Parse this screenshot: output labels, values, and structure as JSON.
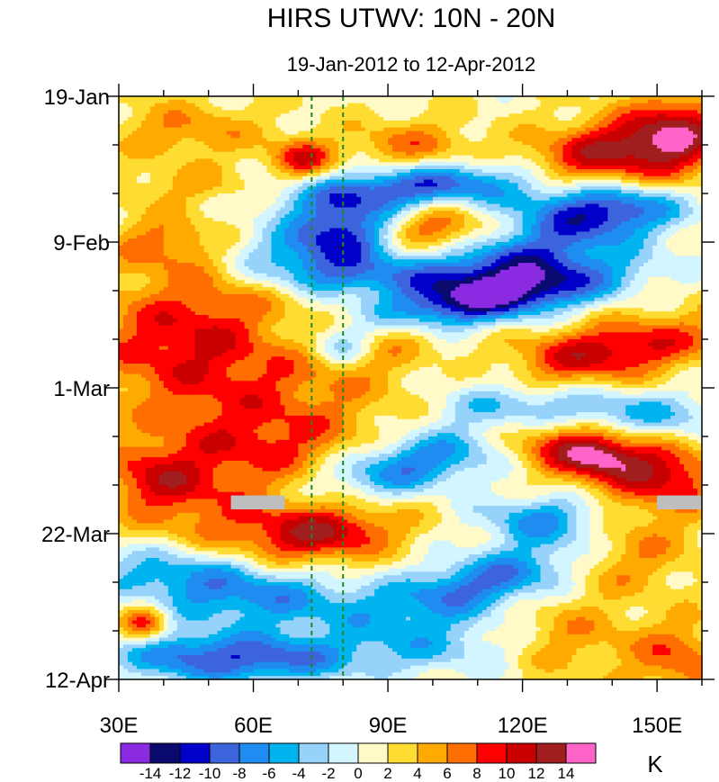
{
  "chart_data": {
    "type": "heatmap",
    "title": "HIRS UTWV: 10N - 20N",
    "subtitle": "19-Jan-2012 to 12-Apr-2012",
    "xlabel": "",
    "ylabel": "",
    "xlim": [
      30,
      160
    ],
    "x_ticks": [
      {
        "value": 30,
        "label": "30E"
      },
      {
        "value": 60,
        "label": "60E"
      },
      {
        "value": 90,
        "label": "90E"
      },
      {
        "value": 120,
        "label": "120E"
      },
      {
        "value": 150,
        "label": "150E"
      }
    ],
    "x_minor_step": 10,
    "ylim_days": [
      0,
      84
    ],
    "y_ticks": [
      {
        "day": 0,
        "label": "19-Jan"
      },
      {
        "day": 21,
        "label": "9-Feb"
      },
      {
        "day": 42,
        "label": "1-Mar"
      },
      {
        "day": 63,
        "label": "22-Mar"
      },
      {
        "day": 84,
        "label": "12-Apr"
      }
    ],
    "y_minor_step_days": 7,
    "reference_lines_lon": [
      73,
      80
    ],
    "reference_line_color": "#1f8a1f",
    "colorbar": {
      "unit": "K",
      "labels": [
        "-14",
        "-12",
        "-10",
        "-8",
        "-6",
        "-4",
        "-2",
        "0",
        "2",
        "4",
        "6",
        "8",
        "10",
        "12",
        "14"
      ],
      "colors": [
        "#8a2be2",
        "#0a0a6e",
        "#0000c8",
        "#3c64dc",
        "#1e8cf0",
        "#00b4f0",
        "#96d2fa",
        "#d2f5ff",
        "#fffac8",
        "#ffdc32",
        "#ffaa00",
        "#ff6e00",
        "#ff0000",
        "#c80000",
        "#a01e1e",
        "#ff64c8"
      ]
    },
    "missing_color": "#bebebe",
    "missing_regions": [
      {
        "lon": [
          55,
          67
        ],
        "day": [
          57.5,
          59.5
        ]
      },
      {
        "lon": [
          150,
          160
        ],
        "day": [
          57.5,
          59.5
        ]
      }
    ],
    "anomaly_features": [
      {
        "lon": 140,
        "day": 8,
        "amp": 11,
        "sl": 14,
        "sd": 3.5,
        "tilt": -0.12
      },
      {
        "lon": 155,
        "day": 6,
        "amp": 7,
        "sl": 7,
        "sd": 5,
        "tilt": 0
      },
      {
        "lon": 71,
        "day": 9,
        "amp": 8,
        "sl": 5,
        "sd": 2,
        "tilt": 0
      },
      {
        "lon": 45,
        "day": 5,
        "amp": 4.5,
        "sl": 12,
        "sd": 3,
        "tilt": 0
      },
      {
        "lon": 95,
        "day": 7,
        "amp": 5,
        "sl": 10,
        "sd": 2.5,
        "tilt": 0
      },
      {
        "lon": 45,
        "day": 13,
        "amp": 3,
        "sl": 10,
        "sd": 2,
        "tilt": 0
      },
      {
        "lon": 97,
        "day": 13,
        "amp": -11,
        "sl": 18,
        "sd": 2.2,
        "tilt": -0.05
      },
      {
        "lon": 130,
        "day": 15,
        "amp": -6,
        "sl": 14,
        "sd": 2.5,
        "tilt": 0
      },
      {
        "lon": 80,
        "day": 19,
        "amp": -11,
        "sl": 8,
        "sd": 3.5,
        "tilt": 0
      },
      {
        "lon": 101,
        "day": 19,
        "amp": 7,
        "sl": 9,
        "sd": 2.5,
        "tilt": 0
      },
      {
        "lon": 140,
        "day": 17,
        "amp": -8,
        "sl": 12,
        "sd": 2.5,
        "tilt": -0.06
      },
      {
        "lon": 40,
        "day": 21,
        "amp": 5,
        "sl": 9,
        "sd": 3,
        "tilt": 0
      },
      {
        "lon": 118,
        "day": 24,
        "amp": -11,
        "sl": 16,
        "sd": 3.5,
        "tilt": -0.12
      },
      {
        "lon": 114,
        "day": 29,
        "amp": -13,
        "sl": 20,
        "sd": 2.5,
        "tilt": -0.1
      },
      {
        "lon": 70,
        "day": 23,
        "amp": -6,
        "sl": 12,
        "sd": 3,
        "tilt": 0
      },
      {
        "lon": 85,
        "day": 26,
        "amp": -6,
        "sl": 14,
        "sd": 2,
        "tilt": 0
      },
      {
        "lon": 50,
        "day": 28,
        "amp": 3,
        "sl": 14,
        "sd": 4,
        "tilt": 0
      },
      {
        "lon": 45,
        "day": 35,
        "amp": 7,
        "sl": 16,
        "sd": 5,
        "tilt": 0
      },
      {
        "lon": 90,
        "day": 35,
        "amp": 4,
        "sl": 10,
        "sd": 4,
        "tilt": 0
      },
      {
        "lon": 80,
        "day": 36,
        "amp": -6,
        "sl": 5,
        "sd": 2,
        "tilt": 0
      },
      {
        "lon": 110,
        "day": 39,
        "amp": -3,
        "sl": 12,
        "sd": 2,
        "tilt": 0
      },
      {
        "lon": 138,
        "day": 37,
        "amp": 10,
        "sl": 18,
        "sd": 3,
        "tilt": -0.1
      },
      {
        "lon": 140,
        "day": 46,
        "amp": -7,
        "sl": 18,
        "sd": 2.5,
        "tilt": 0
      },
      {
        "lon": 60,
        "day": 43,
        "amp": 5,
        "sl": 22,
        "sd": 5,
        "tilt": 0
      },
      {
        "lon": 115,
        "day": 44,
        "amp": -6,
        "sl": 12,
        "sd": 2.5,
        "tilt": 0
      },
      {
        "lon": 135,
        "day": 51,
        "amp": 11,
        "sl": 14,
        "sd": 3.5,
        "tilt": 0.15
      },
      {
        "lon": 137,
        "day": 52,
        "amp": 4.5,
        "sl": 6,
        "sd": 1.6,
        "tilt": 0.12
      },
      {
        "lon": 155,
        "day": 55,
        "amp": 5,
        "sl": 7,
        "sd": 3,
        "tilt": 0
      },
      {
        "lon": 95,
        "day": 53,
        "amp": -10,
        "sl": 14,
        "sd": 3,
        "tilt": -0.12
      },
      {
        "lon": 60,
        "day": 51,
        "amp": 6,
        "sl": 18,
        "sd": 4,
        "tilt": 0
      },
      {
        "lon": 38,
        "day": 55,
        "amp": 6,
        "sl": 8,
        "sd": 3,
        "tilt": 0
      },
      {
        "lon": 125,
        "day": 61,
        "amp": -8,
        "sl": 10,
        "sd": 2.5,
        "tilt": 0
      },
      {
        "lon": 75,
        "day": 63,
        "amp": 10,
        "sl": 12,
        "sd": 3,
        "tilt": -0.05
      },
      {
        "lon": 50,
        "day": 60,
        "amp": 5,
        "sl": 14,
        "sd": 4,
        "tilt": 0
      },
      {
        "lon": 145,
        "day": 63,
        "amp": 4,
        "sl": 10,
        "sd": 4,
        "tilt": 0
      },
      {
        "lon": 45,
        "day": 69,
        "amp": -7,
        "sl": 16,
        "sd": 3,
        "tilt": 0.05
      },
      {
        "lon": 112,
        "day": 70,
        "amp": -10,
        "sl": 16,
        "sd": 3,
        "tilt": -0.15
      },
      {
        "lon": 140,
        "day": 68,
        "amp": 3,
        "sl": 10,
        "sd": 3,
        "tilt": 0
      },
      {
        "lon": 65,
        "day": 73,
        "amp": -6,
        "sl": 18,
        "sd": 3,
        "tilt": 0
      },
      {
        "lon": 36,
        "day": 76,
        "amp": 9,
        "sl": 4,
        "sd": 2,
        "tilt": 0
      },
      {
        "lon": 60,
        "day": 81,
        "amp": -11,
        "sl": 16,
        "sd": 2.5,
        "tilt": 0
      },
      {
        "lon": 100,
        "day": 79,
        "amp": -5,
        "sl": 14,
        "sd": 3,
        "tilt": 0
      },
      {
        "lon": 155,
        "day": 81,
        "amp": 6,
        "sl": 8,
        "sd": 4,
        "tilt": 0
      },
      {
        "lon": 130,
        "day": 78,
        "amp": 4,
        "sl": 10,
        "sd": 4,
        "tilt": 0
      },
      {
        "lon": 40,
        "day": 80,
        "amp": -4,
        "sl": 8,
        "sd": 3,
        "tilt": 0
      }
    ]
  }
}
